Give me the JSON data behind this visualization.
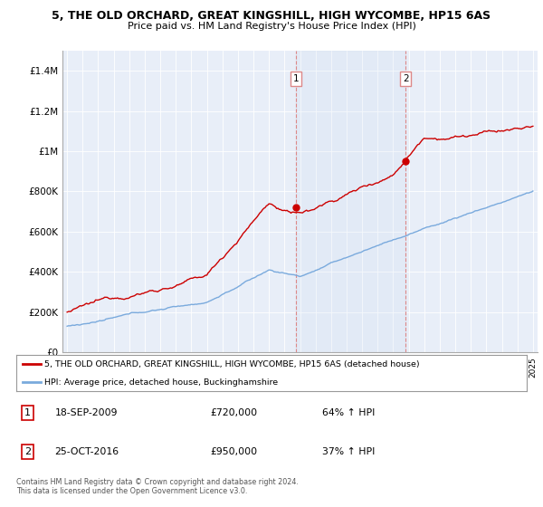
{
  "title1": "5, THE OLD ORCHARD, GREAT KINGSHILL, HIGH WYCOMBE, HP15 6AS",
  "title2": "Price paid vs. HM Land Registry's House Price Index (HPI)",
  "red_label": "5, THE OLD ORCHARD, GREAT KINGSHILL, HIGH WYCOMBE, HP15 6AS (detached house)",
  "blue_label": "HPI: Average price, detached house, Buckinghamshire",
  "annotation1_label": "1",
  "annotation1_date": "18-SEP-2009",
  "annotation1_price": "£720,000",
  "annotation1_pct": "64% ↑ HPI",
  "annotation2_label": "2",
  "annotation2_date": "25-OCT-2016",
  "annotation2_price": "£950,000",
  "annotation2_pct": "37% ↑ HPI",
  "footnote": "Contains HM Land Registry data © Crown copyright and database right 2024.\nThis data is licensed under the Open Government Licence v3.0.",
  "ylim": [
    0,
    1500000
  ],
  "yticks": [
    0,
    200000,
    400000,
    600000,
    800000,
    1000000,
    1200000,
    1400000
  ],
  "ytick_labels": [
    "£0",
    "£200K",
    "£400K",
    "£600K",
    "£800K",
    "£1M",
    "£1.2M",
    "£1.4M"
  ],
  "x_start_year": 1995,
  "x_end_year": 2025,
  "red_color": "#cc0000",
  "blue_color": "#7aaadd",
  "vline_color": "#dd8888",
  "sale1_year": 2009.72,
  "sale1_price": 720000,
  "sale2_year": 2016.81,
  "sale2_price": 950000,
  "background_plot": "#e8eef8",
  "background_fig": "#ffffff"
}
